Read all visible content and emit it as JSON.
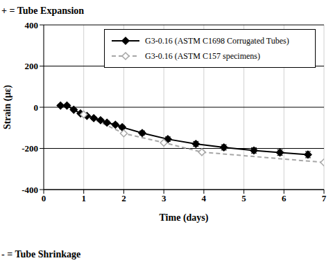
{
  "chart_data": {
    "type": "line",
    "annotations": [
      "+ = Tube Expansion",
      "- = Tube Shrinkage"
    ],
    "x_label": "Time (days)",
    "y_label": "Strain (µε)",
    "xlim": [
      0,
      7
    ],
    "xticks": [
      0,
      1,
      2,
      3,
      4,
      5,
      6,
      7
    ],
    "ylim": [
      -400,
      400
    ],
    "yticks": [
      -400,
      -200,
      0,
      200,
      400
    ],
    "grid": true,
    "legend": "upper right",
    "series": [
      {
        "name": "G3-0.16 (ASTM C1698 Corrugated Tubes)",
        "color": "#000000",
        "marker": "diamond",
        "line_style": "solid",
        "x": [
          0.42,
          0.58,
          0.75,
          0.92,
          1.08,
          1.25,
          1.42,
          1.58,
          1.79,
          1.96,
          2.46,
          3.1,
          3.8,
          4.5,
          5.25,
          5.9,
          6.6
        ],
        "values": [
          8,
          8,
          -12,
          -30,
          -42,
          -53,
          -63,
          -75,
          -85,
          -97,
          -125,
          -155,
          -178,
          -195,
          -210,
          -220,
          -230
        ],
        "errors": [
          5,
          5,
          6,
          6,
          6,
          7,
          7,
          8,
          8,
          9,
          10,
          11,
          12,
          13,
          13,
          14,
          15
        ]
      },
      {
        "name": "G3-0.16 (ASTM C157 specimens)",
        "color": "#a6a6a6",
        "marker": "open_diamond",
        "line_style": "dashed",
        "x": [
          1.0,
          2.0,
          3.0,
          3.95,
          7.0
        ],
        "values": [
          -35,
          -127,
          -172,
          -218,
          -268
        ]
      }
    ]
  }
}
